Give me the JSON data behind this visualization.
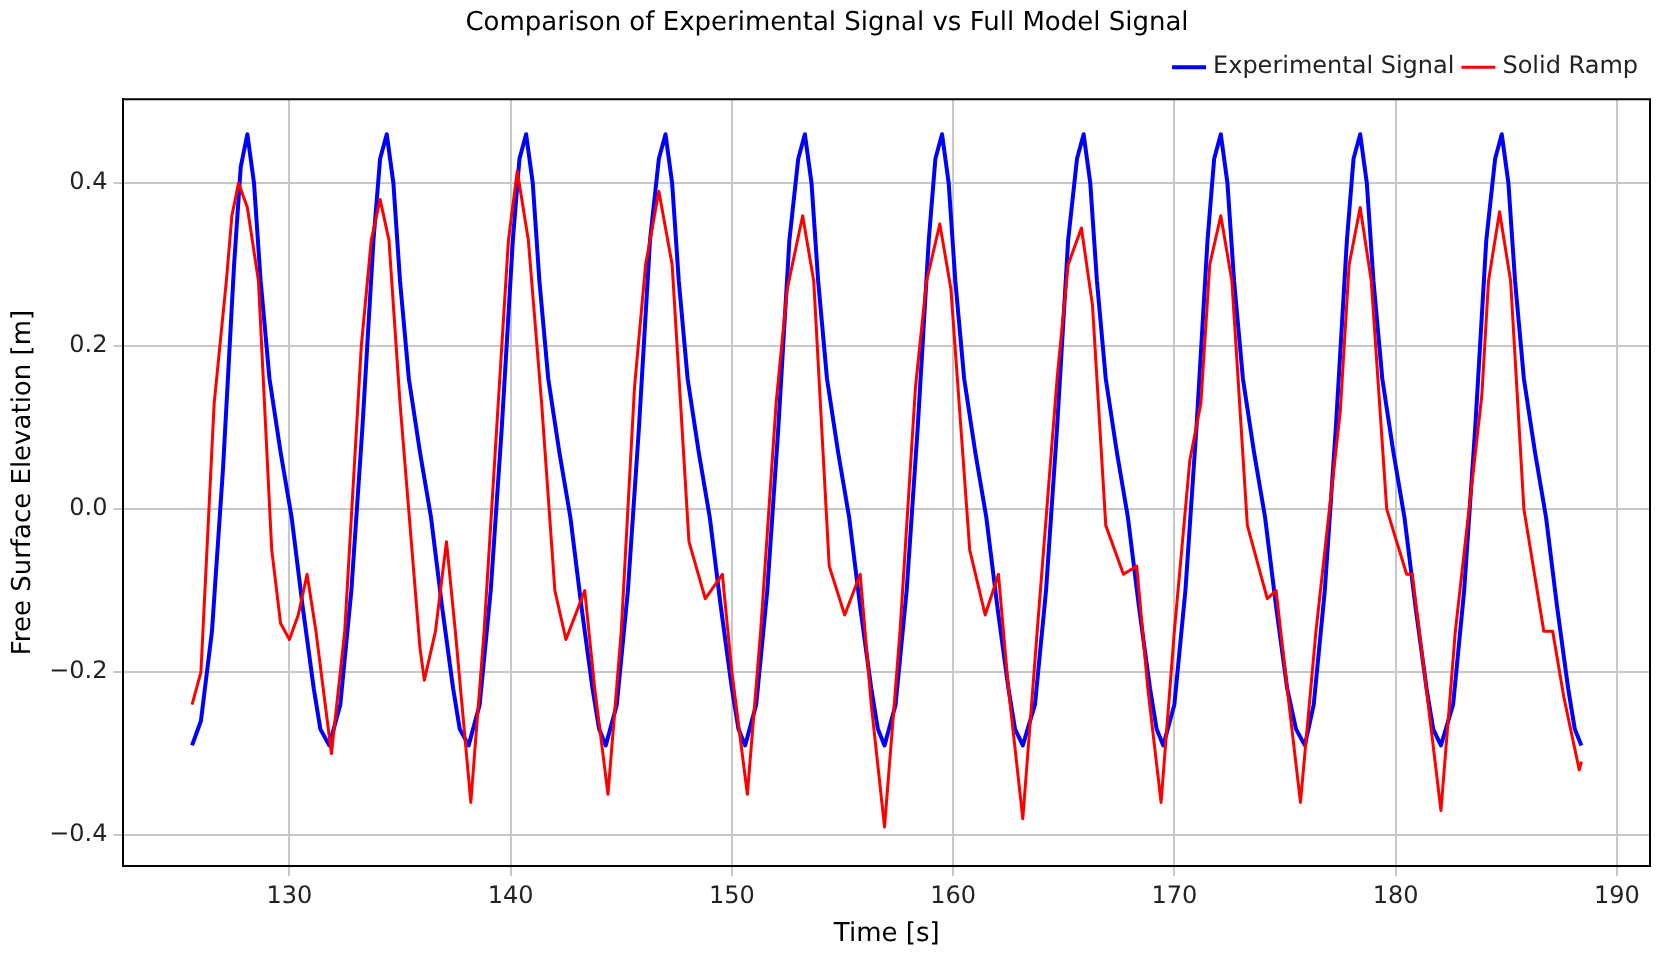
{
  "chart_data": {
    "type": "line",
    "title": "Comparison of Experimental Signal vs Full Model Signal",
    "xlabel": "Time [s]",
    "ylabel": "Free Surface Elevation [m]",
    "xlim": [
      122.5,
      191.5
    ],
    "xticks": [
      130,
      140,
      150,
      160,
      170,
      180,
      190
    ],
    "ylim": [
      -0.438,
      0.503
    ],
    "yticks": [
      {
        "value": -0.4,
        "label": "−0.4"
      },
      {
        "value": -0.2,
        "label": "−0.2"
      },
      {
        "value": 0,
        "label": "0.0"
      },
      0.2,
      0.4
    ],
    "grid": true,
    "legend": "top right",
    "series": [
      {
        "name": "Experimental Signal",
        "color": "#0000ff",
        "x": [
          125.6,
          126.0,
          126.5,
          127.0,
          127.5,
          127.8,
          128.1,
          128.4,
          128.7,
          129.1,
          129.6,
          130.1,
          130.6,
          131.1,
          131.4,
          131.8,
          132.3,
          132.8,
          133.3,
          133.8,
          134.1,
          134.4,
          134.7,
          135.0,
          135.4,
          135.9,
          136.4,
          136.9,
          137.4,
          137.7,
          138.1,
          138.6,
          139.1,
          139.6,
          140.1,
          140.4,
          140.7,
          141.0,
          141.3,
          141.7,
          142.2,
          142.7,
          143.2,
          143.7,
          144.0,
          144.3,
          144.8,
          145.3,
          145.8,
          146.3,
          146.7,
          147.0,
          147.3,
          147.6,
          148.0,
          148.5,
          149.0,
          149.5,
          150.0,
          150.3,
          150.6,
          151.1,
          151.6,
          152.1,
          152.6,
          153.0,
          153.3,
          153.6,
          153.9,
          154.3,
          154.8,
          155.3,
          155.8,
          156.3,
          156.6,
          156.9,
          157.4,
          157.9,
          158.4,
          158.9,
          159.2,
          159.5,
          159.8,
          160.1,
          160.5,
          161.0,
          161.5,
          162.0,
          162.5,
          162.8,
          163.15,
          163.7,
          164.2,
          164.7,
          165.2,
          165.6,
          165.9,
          166.2,
          166.5,
          166.9,
          167.4,
          167.9,
          168.4,
          168.9,
          169.2,
          169.5,
          170.0,
          170.5,
          171.0,
          171.5,
          171.8,
          172.1,
          172.4,
          172.7,
          173.1,
          173.6,
          174.1,
          174.6,
          175.1,
          175.5,
          175.9,
          176.3,
          176.8,
          177.3,
          177.8,
          178.1,
          178.4,
          178.7,
          179.0,
          179.4,
          179.9,
          180.4,
          180.9,
          181.4,
          181.7,
          182.05,
          182.6,
          183.1,
          183.6,
          184.1,
          184.5,
          184.8,
          185.1,
          185.4,
          185.8,
          186.3,
          186.8,
          187.3,
          187.8,
          188.1,
          188.4
        ],
        "values": [
          -0.29,
          -0.26,
          -0.15,
          0.05,
          0.3,
          0.42,
          0.46,
          0.4,
          0.28,
          0.16,
          0.07,
          -0.01,
          -0.12,
          -0.22,
          -0.27,
          -0.29,
          -0.24,
          -0.1,
          0.1,
          0.33,
          0.43,
          0.46,
          0.4,
          0.28,
          0.16,
          0.07,
          -0.01,
          -0.12,
          -0.22,
          -0.27,
          -0.29,
          -0.24,
          -0.1,
          0.1,
          0.33,
          0.43,
          0.46,
          0.4,
          0.28,
          0.16,
          0.07,
          -0.01,
          -0.12,
          -0.22,
          -0.27,
          -0.29,
          -0.24,
          -0.1,
          0.1,
          0.33,
          0.43,
          0.46,
          0.4,
          0.28,
          0.16,
          0.07,
          -0.01,
          -0.12,
          -0.22,
          -0.27,
          -0.29,
          -0.24,
          -0.1,
          0.1,
          0.33,
          0.43,
          0.46,
          0.4,
          0.28,
          0.16,
          0.07,
          -0.01,
          -0.12,
          -0.22,
          -0.27,
          -0.29,
          -0.24,
          -0.1,
          0.1,
          0.33,
          0.43,
          0.46,
          0.4,
          0.28,
          0.16,
          0.07,
          -0.01,
          -0.12,
          -0.22,
          -0.27,
          -0.29,
          -0.24,
          -0.1,
          0.1,
          0.33,
          0.43,
          0.46,
          0.4,
          0.28,
          0.16,
          0.07,
          -0.01,
          -0.12,
          -0.22,
          -0.27,
          -0.29,
          -0.24,
          -0.1,
          0.1,
          0.33,
          0.43,
          0.46,
          0.4,
          0.28,
          0.16,
          0.07,
          -0.01,
          -0.12,
          -0.22,
          -0.27,
          -0.29,
          -0.24,
          -0.1,
          0.1,
          0.33,
          0.43,
          0.46,
          0.4,
          0.28,
          0.16,
          0.07,
          -0.01,
          -0.12,
          -0.22,
          -0.27,
          -0.29,
          -0.24,
          -0.1,
          0.1,
          0.33,
          0.43,
          0.46,
          0.4,
          0.28,
          0.16,
          0.07,
          -0.01,
          -0.12,
          -0.22,
          -0.27,
          -0.29
        ]
      },
      {
        "name": "Solid Ramp",
        "color": "#ff0000",
        "x": [
          125.6,
          126.0,
          126.6,
          127.15,
          127.4,
          127.7,
          128.1,
          128.6,
          129.2,
          129.6,
          130.0,
          130.4,
          130.8,
          131.2,
          131.9,
          132.5,
          133.25,
          133.7,
          134.1,
          134.5,
          135.0,
          135.9,
          136.1,
          136.6,
          137.1,
          137.5,
          138.2,
          138.8,
          139.6,
          139.9,
          140.3,
          140.8,
          141.4,
          142.0,
          142.5,
          143.35,
          143.8,
          144.4,
          145.0,
          145.6,
          146.1,
          146.7,
          147.3,
          148.06,
          148.8,
          149.57,
          150.0,
          150.7,
          151.3,
          152.0,
          152.5,
          153.2,
          153.7,
          154.4,
          155.1,
          155.8,
          156.3,
          156.9,
          157.6,
          158.3,
          158.8,
          159.4,
          159.9,
          160.75,
          161.45,
          162.05,
          162.5,
          163.15,
          163.8,
          164.7,
          165.2,
          165.8,
          166.3,
          166.9,
          167.7,
          168.3,
          168.8,
          169.4,
          170.0,
          170.7,
          171.2,
          171.6,
          172.1,
          172.6,
          173.3,
          174.2,
          174.6,
          175.1,
          175.7,
          176.4,
          177.5,
          177.9,
          178.4,
          178.9,
          179.6,
          180.5,
          180.75,
          181.3,
          182.05,
          182.7,
          183.9,
          184.2,
          184.7,
          185.2,
          185.8,
          186.7,
          187.1,
          187.6,
          188.3,
          188.4
        ],
        "values": [
          -0.24,
          -0.2,
          0.13,
          0.28,
          0.36,
          0.4,
          0.37,
          0.28,
          -0.05,
          -0.14,
          -0.16,
          -0.13,
          -0.08,
          -0.15,
          -0.3,
          -0.15,
          0.2,
          0.33,
          0.38,
          0.33,
          0.13,
          -0.17,
          -0.21,
          -0.15,
          -0.04,
          -0.15,
          -0.36,
          -0.15,
          0.2,
          0.33,
          0.415,
          0.33,
          0.13,
          -0.1,
          -0.16,
          -0.1,
          -0.22,
          -0.35,
          -0.15,
          0.15,
          0.3,
          0.39,
          0.3,
          -0.04,
          -0.11,
          -0.08,
          -0.2,
          -0.35,
          -0.15,
          0.13,
          0.27,
          0.36,
          0.28,
          -0.07,
          -0.13,
          -0.08,
          -0.24,
          -0.39,
          -0.15,
          0.15,
          0.28,
          0.35,
          0.27,
          -0.05,
          -0.13,
          -0.08,
          -0.22,
          -0.38,
          -0.15,
          0.16,
          0.3,
          0.345,
          0.25,
          -0.02,
          -0.08,
          -0.07,
          -0.22,
          -0.36,
          -0.15,
          0.06,
          0.13,
          0.3,
          0.36,
          0.28,
          -0.02,
          -0.11,
          -0.1,
          -0.22,
          -0.36,
          -0.15,
          0.12,
          0.3,
          0.37,
          0.28,
          0.0,
          -0.08,
          -0.08,
          -0.2,
          -0.37,
          -0.15,
          0.14,
          0.28,
          0.365,
          0.28,
          0.0,
          -0.15,
          -0.15,
          -0.23,
          -0.32,
          -0.31
        ]
      }
    ]
  }
}
